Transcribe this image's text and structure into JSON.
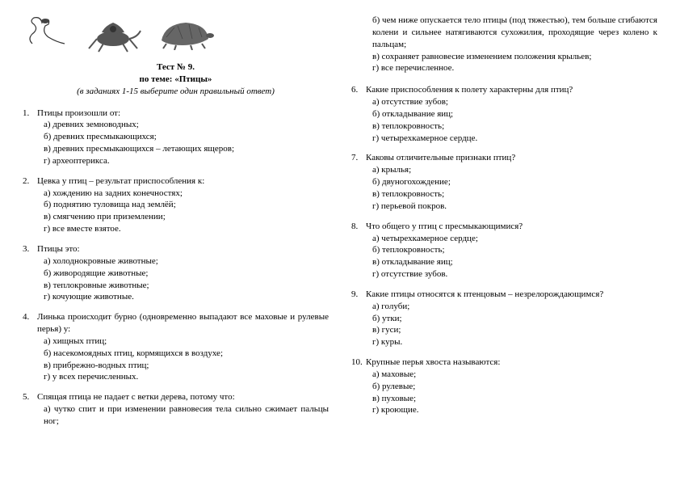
{
  "title": {
    "line1": "Тест № 9.",
    "line2": "по теме: «Птицы»",
    "instr": "(в заданиях 1-15 выберите один правильный ответ)"
  },
  "col1": {
    "questions": [
      {
        "num": "1.",
        "stem": "Птицы произошли от:",
        "opts": [
          "а) древних земноводных;",
          "б) древних пресмыкающихся;",
          "в) древних пресмыкающихся – летающих ящеров;",
          "г) археоптерикса."
        ]
      },
      {
        "num": "2.",
        "stem": "Цевка у птиц – результат приспособления к:",
        "opts": [
          "а) хождению на задних конечностях;",
          "б) поднятию туловища над землёй;",
          "в) смягчению при приземлении;",
          "г) все вместе взятое."
        ]
      },
      {
        "num": "3.",
        "stem": "Птицы это:",
        "opts": [
          "а) холоднокровные животные;",
          "б) живородящие животные;",
          "в) теплокровные животные;",
          "г) кочующие животные."
        ]
      },
      {
        "num": "4.",
        "stem": "Линька происходит бурно (одновременно выпадают все маховые и рулевые перья) у:",
        "opts": [
          "а) хищных птиц;",
          "б) насекомоядных птиц, кормящихся в воздухе;",
          "в) прибрежно-водных птиц;",
          "г) у всех перечисленных."
        ]
      },
      {
        "num": "5.",
        "stem": "Спящая птица не падает с ветки дерева, потому что:",
        "opts": [
          "а) чутко спит и при изменении равновесия тела сильно сжимает пальцы ног;"
        ]
      }
    ]
  },
  "col2_cont": [
    "б) чем ниже опускается тело птицы (под тяжестью), тем больше сгибаются колени и сильнее натягиваются сухожилия, проходящие через колено к пальцам;",
    "в) сохраняет равновесие изменением положения крыльев;",
    "г) все перечисленное."
  ],
  "col2": {
    "questions": [
      {
        "num": "6.",
        "stem": "Какие приспособления к полету характерны для птиц?",
        "opts": [
          "а) отсутствие зубов;",
          "б) откладывание яиц;",
          "в) теплокровность;",
          "г) четырехкамерное сердце."
        ]
      },
      {
        "num": "7.",
        "stem": "Каковы отличительные признаки птиц?",
        "opts": [
          "а) крылья;",
          "б) двуногохождение;",
          "в) теплокровность;",
          "г) перьевой покров."
        ]
      },
      {
        "num": "8.",
        "stem": "Что общего у птиц с пресмыкающимися?",
        "opts": [
          "а) четырехкамерное сердце;",
          "б) теплокровность;",
          "в) откладывание яиц;",
          "г) отсутствие зубов."
        ]
      },
      {
        "num": "9.",
        "stem": "Какие птицы относятся к птенцовым – незрелорождающимся?",
        "opts": [
          "а) голуби;",
          "б) утки;",
          "в) гуси;",
          "г) куры."
        ]
      },
      {
        "num": "10.",
        "stem": "Крупные перья хвоста называются:",
        "opts": [
          "а) маховые;",
          "б) рулевые;",
          "в) пуховые;",
          "г) кроющие."
        ]
      }
    ]
  }
}
